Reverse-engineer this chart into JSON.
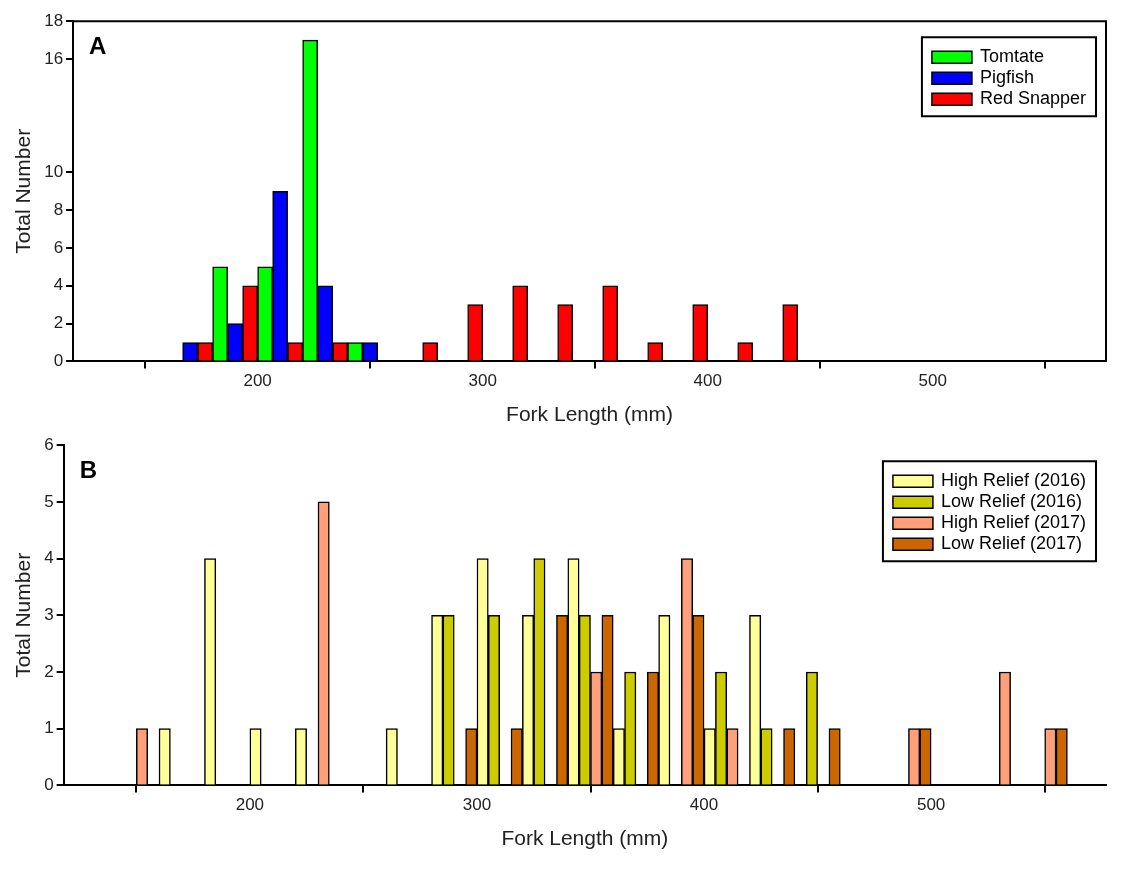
{
  "chart_data": [
    {
      "type": "bar",
      "title": "A",
      "xlabel": "Fork Length (mm)",
      "ylabel": "Total Number",
      "x": [
        170,
        190,
        210,
        230,
        250,
        270,
        290,
        310,
        330,
        350,
        370,
        390,
        410,
        430
      ],
      "series": [
        {
          "name": "Tomtate",
          "color": "#00ff00",
          "values": [
            0,
            5,
            5,
            17,
            1,
            0,
            0,
            0,
            0,
            0,
            0,
            0,
            0,
            0
          ]
        },
        {
          "name": "Pigfish",
          "color": "#0000ff",
          "values": [
            1,
            2,
            9,
            4,
            1,
            0,
            0,
            0,
            0,
            0,
            0,
            0,
            0,
            0
          ]
        },
        {
          "name": "Red Snapper",
          "color": "#ff0000",
          "values": [
            1,
            4,
            1,
            1,
            0,
            1,
            3,
            4,
            3,
            4,
            1,
            3,
            1,
            3
          ]
        }
      ],
      "xlim": [
        118,
        577
      ],
      "xticks": [
        200,
        300,
        400,
        500
      ],
      "ylim": [
        0,
        18
      ],
      "yticks": [
        0,
        2,
        4,
        6,
        8,
        10,
        16,
        18
      ],
      "legend": "top right"
    },
    {
      "type": "bar",
      "title": "B",
      "xlabel": "Fork Length (mm)",
      "ylabel": "Total Number",
      "series": [
        {
          "name": "High Relief (2016)",
          "color": "#ffff99",
          "x": [
            162.5,
            182.5,
            202.5,
            222.5,
            262.5,
            282.5,
            302.5,
            322.5,
            342.5,
            362.5,
            382.5,
            402.5,
            422.5
          ],
          "values": [
            1,
            4,
            1,
            1,
            1,
            3,
            4,
            3,
            4,
            1,
            3,
            1,
            3
          ]
        },
        {
          "name": "Low Relief (2016)",
          "color": "#cccc00",
          "x": [
            287.5,
            307.5,
            327.5,
            347.5,
            367.5,
            407.5,
            427.5,
            447.5
          ],
          "values": [
            3,
            3,
            4,
            3,
            2,
            2,
            1,
            2
          ]
        },
        {
          "name": "High Relief (2017)",
          "color": "#ffa07a",
          "x": [
            152.5,
            232.5,
            352.5,
            392.5,
            412.5,
            492.5,
            532.5,
            552.5
          ],
          "values": [
            1,
            5,
            2,
            4,
            1,
            1,
            2,
            1
          ]
        },
        {
          "name": "Low Relief (2017)",
          "color": "#cc6600",
          "x": [
            297.5,
            317.5,
            337.5,
            357.5,
            377.5,
            397.5,
            437.5,
            457.5,
            497.5,
            557.5
          ],
          "values": [
            1,
            1,
            3,
            3,
            2,
            3,
            1,
            1,
            1,
            1
          ]
        }
      ],
      "xlim": [
        118,
        577
      ],
      "xticks": [
        200,
        300,
        400,
        500
      ],
      "ylim": [
        0,
        6
      ],
      "yticks": [
        0,
        1,
        2,
        3,
        4,
        5,
        6
      ],
      "legend": "top right"
    }
  ]
}
